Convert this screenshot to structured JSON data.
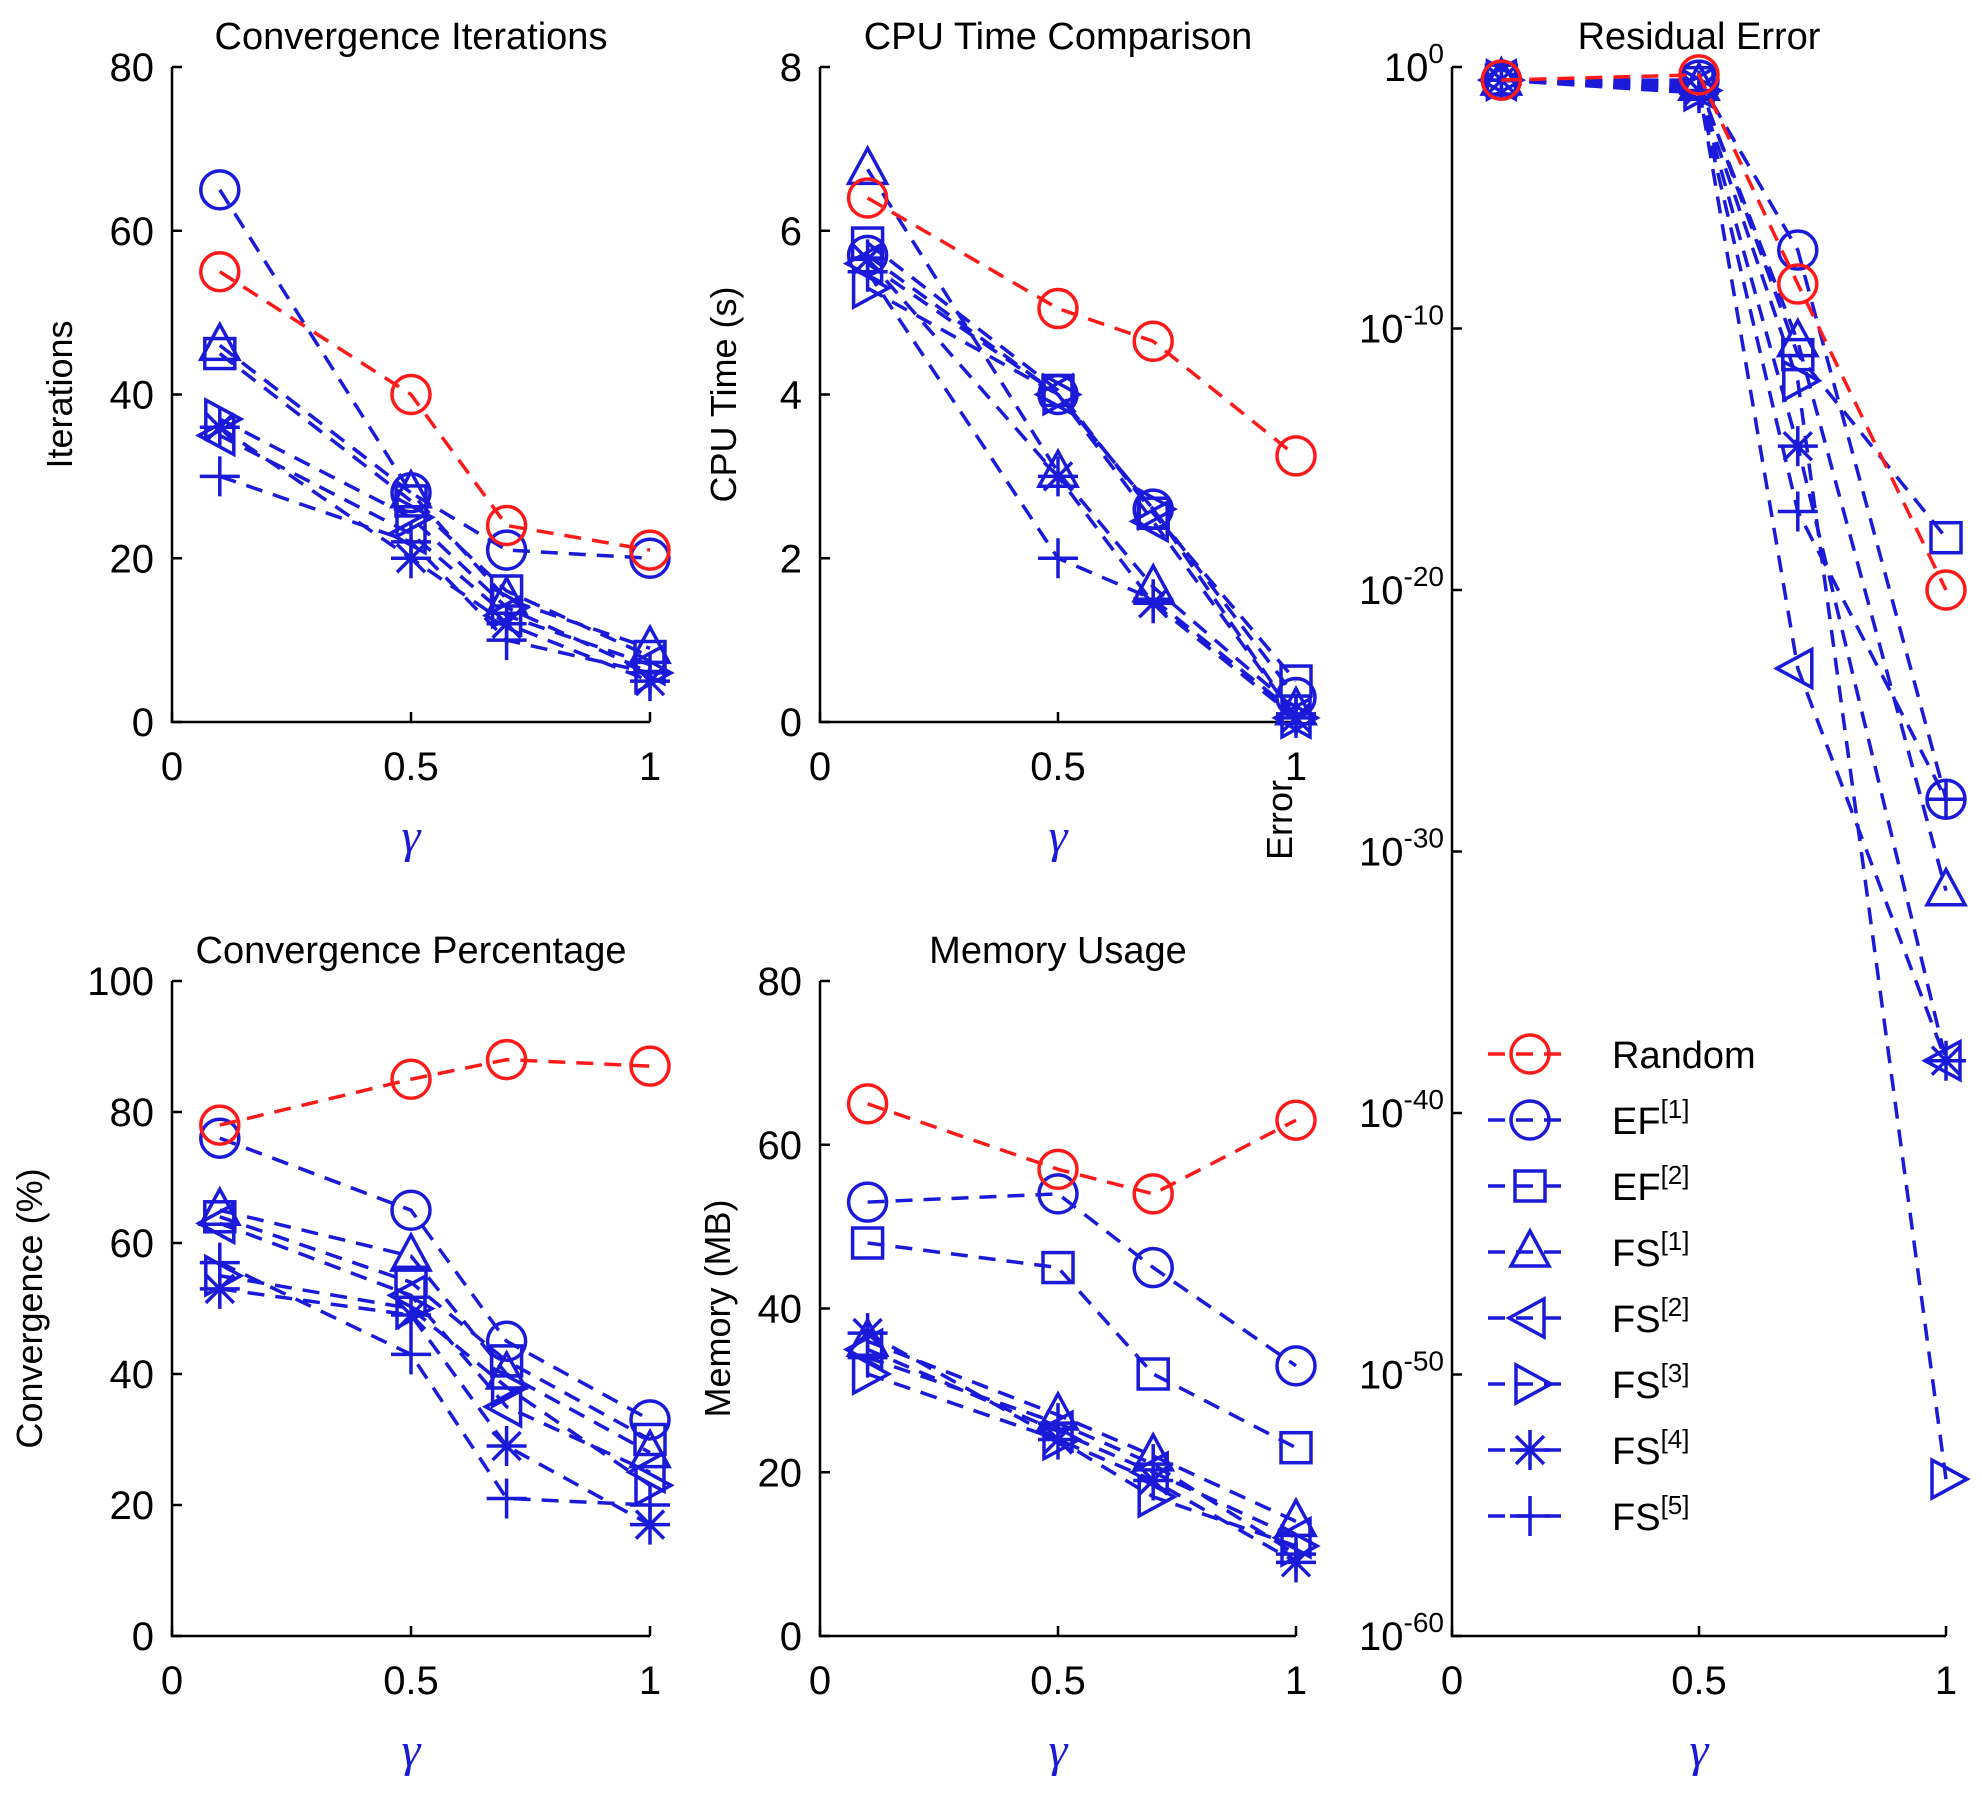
{
  "legend": [
    "Random",
    "EF[1]",
    "EF[2]",
    "FS[1]",
    "FS[2]",
    "FS[3]",
    "FS[4]",
    "FS[5]"
  ],
  "legend_items": [
    {
      "base": "Random",
      "sup": ""
    },
    {
      "base": "EF",
      "sup": "[1]"
    },
    {
      "base": "EF",
      "sup": "[2]"
    },
    {
      "base": "FS",
      "sup": "[1]"
    },
    {
      "base": "FS",
      "sup": "[2]"
    },
    {
      "base": "FS",
      "sup": "[3]"
    },
    {
      "base": "FS",
      "sup": "[4]"
    },
    {
      "base": "FS",
      "sup": "[5]"
    }
  ],
  "colors": {
    "random": "#ff1a1a",
    "method": "#1a1ad8",
    "axis": "#000000"
  },
  "chart_data": [
    {
      "id": "iterations",
      "type": "line",
      "title": "Convergence Iterations",
      "xlabel": "γ",
      "ylabel": "Iterations",
      "xlim": [
        0,
        1
      ],
      "ylim": [
        0,
        80
      ],
      "xticks": [
        0,
        0.5,
        1
      ],
      "xtick_labels": [
        "0",
        "0.5",
        "1"
      ],
      "yticks": [
        0,
        20,
        40,
        60,
        80
      ],
      "ytick_labels": [
        "0",
        "20",
        "40",
        "60",
        "80"
      ],
      "x": [
        0.1,
        0.5,
        0.7,
        1
      ],
      "series": [
        {
          "name": "Random",
          "values": [
            55,
            40,
            24,
            21
          ]
        },
        {
          "name": "EF[1]",
          "values": [
            65,
            28,
            21,
            20
          ]
        },
        {
          "name": "EF[2]",
          "values": [
            45,
            27,
            16,
            8
          ]
        },
        {
          "name": "FS[1]",
          "values": [
            46,
            28,
            15,
            9
          ]
        },
        {
          "name": "FS[2]",
          "values": [
            35,
            23,
            13,
            7
          ]
        },
        {
          "name": "FS[3]",
          "values": [
            37,
            25,
            14,
            6
          ]
        },
        {
          "name": "FS[4]",
          "values": [
            36,
            20,
            12,
            5
          ]
        },
        {
          "name": "FS[5]",
          "values": [
            30,
            22,
            10,
            6
          ]
        }
      ]
    },
    {
      "id": "cputime",
      "type": "line",
      "title": "CPU Time Comparison",
      "xlabel": "γ",
      "ylabel": "CPU Time (s)",
      "xlim": [
        0,
        1
      ],
      "ylim": [
        0,
        8
      ],
      "xticks": [
        0,
        0.5,
        1
      ],
      "xtick_labels": [
        "0",
        "0.5",
        "1"
      ],
      "yticks": [
        0,
        2,
        4,
        6,
        8
      ],
      "ytick_labels": [
        "0",
        "2",
        "4",
        "6",
        "8"
      ],
      "x": [
        0.1,
        0.5,
        0.7,
        1
      ],
      "series": [
        {
          "name": "Random",
          "values": [
            6.4,
            5.05,
            4.65,
            3.25
          ]
        },
        {
          "name": "EF[1]",
          "values": [
            5.7,
            4.0,
            2.6,
            0.3
          ]
        },
        {
          "name": "EF[2]",
          "values": [
            5.85,
            4.05,
            2.55,
            0.5
          ]
        },
        {
          "name": "FS[1]",
          "values": [
            6.75,
            3.05,
            1.65,
            0.15
          ]
        },
        {
          "name": "FS[2]",
          "values": [
            5.6,
            4.0,
            2.45,
            0.05
          ]
        },
        {
          "name": "FS[3]",
          "values": [
            5.3,
            4.0,
            2.6,
            0.05
          ]
        },
        {
          "name": "FS[4]",
          "values": [
            5.65,
            3.0,
            1.45,
            0.05
          ]
        },
        {
          "name": "FS[5]",
          "values": [
            5.5,
            2.0,
            1.5,
            0.1
          ]
        }
      ]
    },
    {
      "id": "residual",
      "type": "line",
      "title": "Residual Error",
      "xlabel": "γ",
      "ylabel": "Error",
      "yscale": "log",
      "xlim": [
        0,
        1
      ],
      "ylim_exp": [
        -60,
        0
      ],
      "xticks": [
        0,
        0.5,
        1
      ],
      "xtick_labels": [
        "0",
        "0.5",
        "1"
      ],
      "yticks_exp": [
        0,
        -10,
        -20,
        -30,
        -40,
        -50,
        -60
      ],
      "ytick_base": "10",
      "ytick_exponents": [
        "0",
        "-10",
        "-20",
        "-30",
        "-40",
        "-50",
        "-60"
      ],
      "x": [
        0.1,
        0.5,
        0.7,
        1
      ],
      "series": [
        {
          "name": "Random",
          "values_exp": [
            -0.5,
            -0.3,
            -8.3,
            -20
          ]
        },
        {
          "name": "EF[1]",
          "values_exp": [
            -0.5,
            -0.5,
            -7,
            -28
          ]
        },
        {
          "name": "EF[2]",
          "values_exp": [
            -0.5,
            -0.6,
            -11,
            -18
          ]
        },
        {
          "name": "FS[1]",
          "values_exp": [
            -0.5,
            -0.7,
            -10.5,
            -31.5
          ]
        },
        {
          "name": "FS[2]",
          "values_exp": [
            -0.5,
            -0.8,
            -23,
            -38
          ]
        },
        {
          "name": "FS[3]",
          "values_exp": [
            -0.5,
            -0.9,
            -12,
            -54
          ]
        },
        {
          "name": "FS[4]",
          "values_exp": [
            -0.5,
            -0.9,
            -14.5,
            -38
          ]
        },
        {
          "name": "FS[5]",
          "values_exp": [
            -0.5,
            -1.0,
            -17,
            -28
          ]
        }
      ]
    },
    {
      "id": "convergence",
      "type": "line",
      "title": "Convergence Percentage",
      "xlabel": "γ",
      "ylabel": "Convergence (%)",
      "xlim": [
        0,
        1
      ],
      "ylim": [
        0,
        100
      ],
      "xticks": [
        0,
        0.5,
        1
      ],
      "xtick_labels": [
        "0",
        "0.5",
        "1"
      ],
      "yticks": [
        0,
        20,
        40,
        60,
        80,
        100
      ],
      "ytick_labels": [
        "0",
        "20",
        "40",
        "60",
        "80",
        "100"
      ],
      "x": [
        0.1,
        0.5,
        0.7,
        1
      ],
      "series": [
        {
          "name": "Random",
          "values": [
            78,
            85,
            88,
            87
          ]
        },
        {
          "name": "EF[1]",
          "values": [
            76,
            65,
            45,
            33
          ]
        },
        {
          "name": "EF[2]",
          "values": [
            64,
            54,
            42,
            30
          ]
        },
        {
          "name": "FS[1]",
          "values": [
            65,
            58,
            40,
            28
          ]
        },
        {
          "name": "FS[2]",
          "values": [
            63,
            52,
            35,
            25
          ]
        },
        {
          "name": "FS[3]",
          "values": [
            55,
            50,
            38,
            23
          ]
        },
        {
          "name": "FS[4]",
          "values": [
            53,
            49,
            29,
            17
          ]
        },
        {
          "name": "FS[5]",
          "values": [
            57,
            43,
            21,
            20
          ]
        }
      ]
    },
    {
      "id": "memory",
      "type": "line",
      "title": "Memory Usage",
      "xlabel": "γ",
      "ylabel": "Memory (MB)",
      "xlim": [
        0,
        1
      ],
      "ylim": [
        0,
        80
      ],
      "xticks": [
        0,
        0.5,
        1
      ],
      "xtick_labels": [
        "0",
        "0.5",
        "1"
      ],
      "yticks": [
        0,
        20,
        40,
        60,
        80
      ],
      "ytick_labels": [
        "0",
        "20",
        "40",
        "60",
        "80"
      ],
      "x": [
        0.1,
        0.5,
        0.7,
        1
      ],
      "series": [
        {
          "name": "Random",
          "values": [
            65,
            57,
            54,
            63
          ]
        },
        {
          "name": "EF[1]",
          "values": [
            53,
            54,
            45,
            33
          ]
        },
        {
          "name": "EF[2]",
          "values": [
            48,
            45,
            32,
            23
          ]
        },
        {
          "name": "FS[1]",
          "values": [
            36,
            27,
            22,
            14
          ]
        },
        {
          "name": "FS[2]",
          "values": [
            35,
            25,
            20,
            12
          ]
        },
        {
          "name": "FS[3]",
          "values": [
            32,
            24,
            17,
            11
          ]
        },
        {
          "name": "FS[4]",
          "values": [
            37,
            24,
            19,
            9
          ]
        },
        {
          "name": "FS[5]",
          "values": [
            34,
            26,
            21,
            10
          ]
        }
      ]
    }
  ]
}
